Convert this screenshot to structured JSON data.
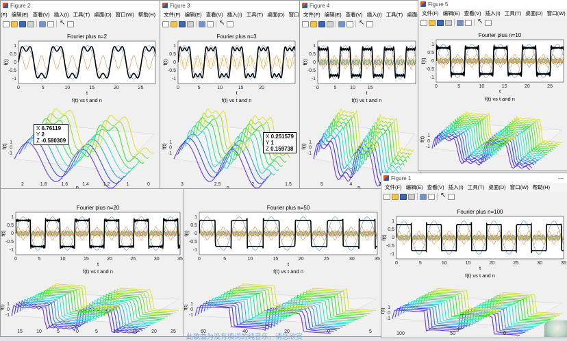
{
  "menu": [
    "文件(F)",
    "编辑(E)",
    "查看(V)",
    "插入(I)",
    "工具(T)",
    "桌面(D)",
    "窗口(W)",
    "帮助(H)"
  ],
  "windows": [
    {
      "id": "fig2",
      "title": "Figure 2",
      "n": 2,
      "plot_title": "Fourier plus  n=2",
      "tip": {
        "x": "6.76119",
        "y": "2",
        "z": "-0.580309"
      },
      "xt": [
        "0",
        "5",
        "10",
        "15",
        "20",
        "25"
      ],
      "xt3d": [
        "2",
        "1.8",
        "1.6",
        "1.4",
        "1.2",
        "1",
        "0"
      ],
      "yt3d": [
        "1",
        "0",
        "-1"
      ]
    },
    {
      "id": "fig3",
      "title": "Figure 3",
      "n": 3,
      "plot_title": "Fourier plus  n=3",
      "tip": {
        "x": "0.251579",
        "y": "1",
        "z": "0.159738"
      },
      "xt": [
        "0",
        "5",
        "10",
        "15",
        "20"
      ],
      "xt3d": [
        "3",
        "2.5",
        "2",
        "1.5"
      ],
      "yt3d": [
        "1",
        "0",
        "-1"
      ]
    },
    {
      "id": "fig4",
      "title": "Figure 4",
      "n": 5,
      "plot_title": "",
      "xt": [
        "0",
        "5",
        "10",
        "15"
      ],
      "xt3d": [
        "5",
        "4",
        "3",
        "2"
      ],
      "yt3d": [
        "1",
        "0",
        "-1"
      ]
    },
    {
      "id": "fig5",
      "title": "Figure 5",
      "n": 10,
      "plot_title": "Fourier plus  n=10",
      "xt": [
        "0",
        "5",
        "10",
        "15",
        "20",
        "25"
      ],
      "xt3d": [],
      "yt3d": [
        "1",
        "0",
        "-1"
      ]
    },
    {
      "id": "fig20",
      "title": "",
      "n": 20,
      "plot_title": "Fourier plus  n=20",
      "xt": [
        "0",
        "5",
        "10",
        "15",
        "20",
        "25",
        "30",
        "35"
      ],
      "xt3d": [
        "15",
        "10",
        "5",
        "0",
        "5",
        "10",
        "15",
        "20",
        "25"
      ],
      "yt3d": [
        "1",
        "0",
        "-1"
      ]
    },
    {
      "id": "fig50",
      "title": "",
      "n": 50,
      "plot_title": "Fourier plus  n=50",
      "xt": [
        "0",
        "5",
        "10",
        "15",
        "20",
        "25",
        "30",
        "35"
      ],
      "xt3d": [
        "60",
        "40",
        "20",
        "0",
        "5"
      ],
      "yt3d": [
        "1",
        "0",
        "-1"
      ]
    },
    {
      "id": "fig1",
      "title": "Figure 1",
      "n": 100,
      "plot_title": "Fourier plus  n=100",
      "xt": [
        "0",
        "5",
        "10",
        "15",
        "20",
        "25",
        "30",
        "35"
      ],
      "xt3d": [
        "100",
        "50",
        "0",
        "5"
      ],
      "yt3d": [
        "1",
        "0",
        "-1"
      ]
    }
  ],
  "labels": {
    "t": "t",
    "ft": "f(t)",
    "n": "n",
    "sub": "f(t) vs t and n"
  },
  "tip_keys": {
    "x": "X",
    "y": "Y",
    "z": "Z"
  },
  "lyric": "此歌曲为没有填词的纯音乐，请您欣赏",
  "colors": {
    "black": "#000000",
    "blue": "#4a96d6",
    "orange": "#e08a4b",
    "yellow": "#e9c84a",
    "purple": "#7b4aa0",
    "green": "#79b84d"
  }
}
